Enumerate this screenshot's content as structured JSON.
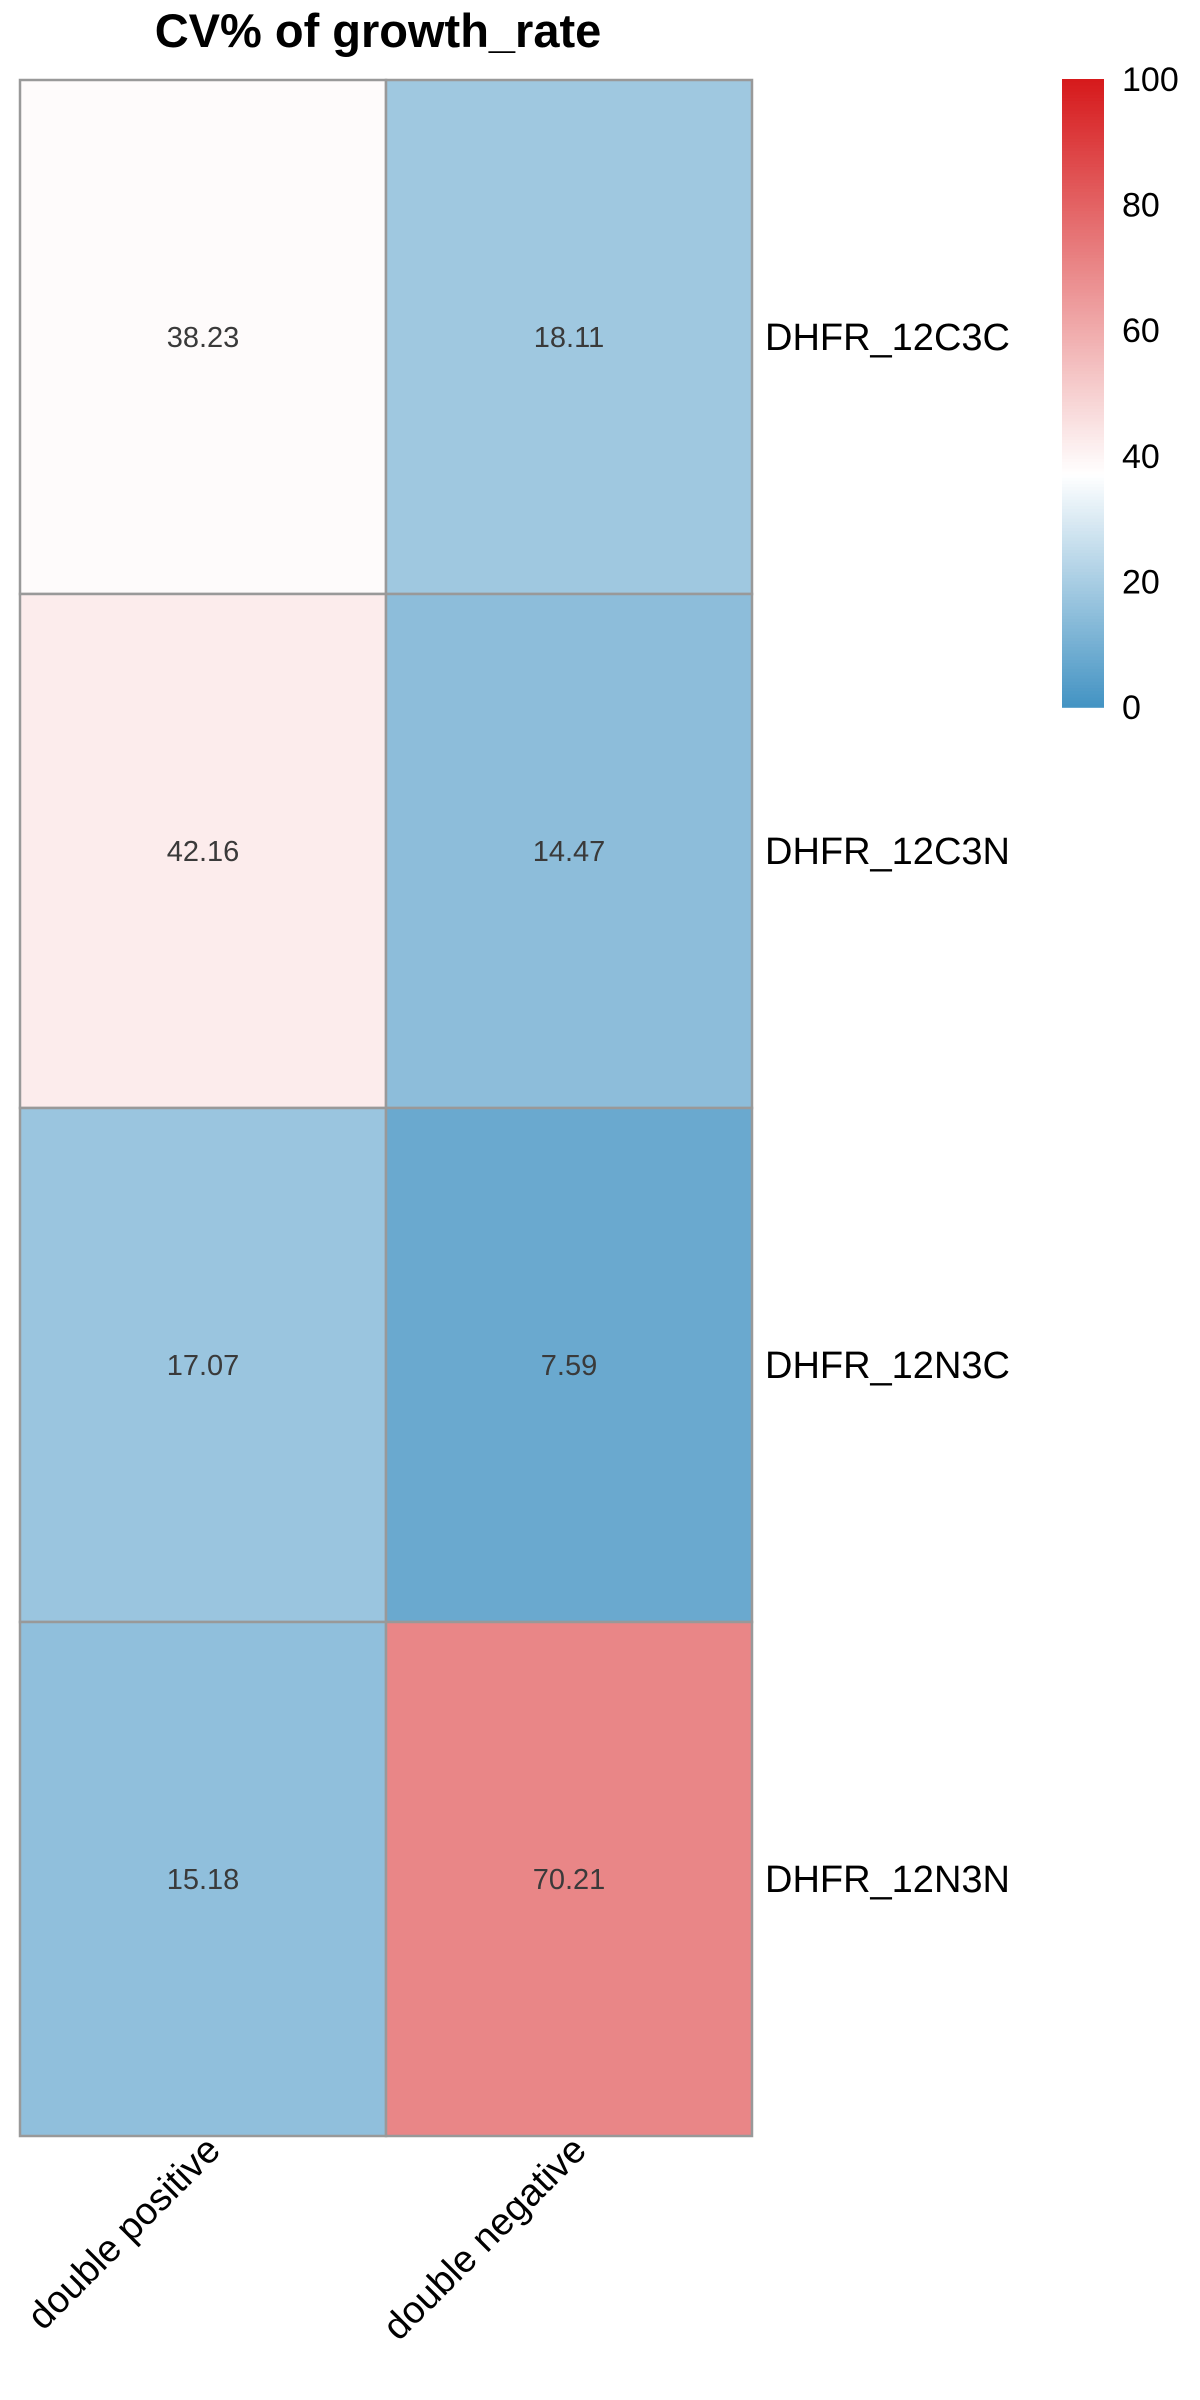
{
  "chart_data": {
    "type": "heatmap",
    "title": "CV% of  growth_rate",
    "rows": [
      "DHFR_12C3C",
      "DHFR_12C3N",
      "DHFR_12N3C",
      "DHFR_12N3N"
    ],
    "columns": [
      "double positive",
      "double negative"
    ],
    "values": [
      [
        38.23,
        18.11
      ],
      [
        42.16,
        14.47
      ],
      [
        17.07,
        7.59
      ],
      [
        15.18,
        70.21
      ]
    ],
    "value_labels": [
      [
        "38.23",
        "18.11"
      ],
      [
        "42.16",
        "14.47"
      ],
      [
        "17.07",
        "7.59"
      ],
      [
        "15.18",
        "70.21"
      ]
    ],
    "color_scale": {
      "range": [
        0,
        100
      ],
      "midpoint": 37,
      "low_color": "#4393c3",
      "mid_color": "#ffffff",
      "high_color": "#d6191b",
      "ticks": [
        "0",
        "20",
        "40",
        "60",
        "80",
        "100"
      ],
      "tick_values": [
        0,
        20,
        40,
        60,
        80,
        100
      ]
    },
    "cell_border_color": "#999999",
    "legend_position": "top-right"
  }
}
